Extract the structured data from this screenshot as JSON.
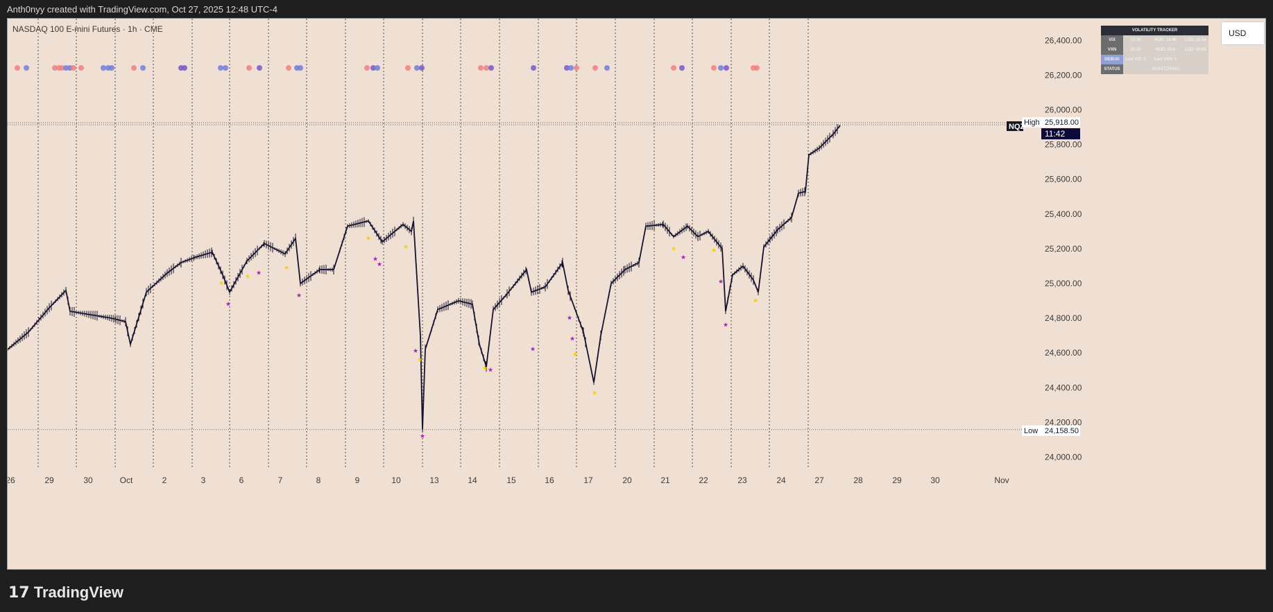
{
  "header": {
    "caption": "Anth0nyy created with TradingView.com, Oct 27, 2025 12:48 UTC-4"
  },
  "chart": {
    "symbol_label": "NASDAQ 100 E-mini Futures · 1h · CME",
    "currency": "USD",
    "ticker_tag": "NQZ",
    "high_label": "High",
    "high_value": "25,918.00",
    "countdown": "11:42",
    "low_label": "Low",
    "low_value": "24,158.50"
  },
  "volatility_tracker": {
    "title": "VOLATILITY TRACKER",
    "rows": [
      {
        "label": "VIX",
        "c1": "15.99",
        "c2": "HOD: 16.46",
        "c3": "LOD: 15.56"
      },
      {
        "label": "VXN",
        "c1": "20.31",
        "c2": "HOD: 20.8",
        "c3": "LOD: 19.65"
      },
      {
        "label": "DEBUG",
        "c1": "Last VIX: 0",
        "c2": "Last VXN: 0",
        "c3": ""
      },
      {
        "label": "STATUS",
        "status": "MONITORING"
      }
    ]
  },
  "footer": {
    "brand": "TradingView"
  },
  "colors": {
    "background": "#efe0d3",
    "candle": "#14122e",
    "dot_red": "#f08080",
    "dot_blue": "#6e7fdc",
    "dot_purple": "#7a57c8",
    "star_yellow": "#f5d000",
    "star_purple": "#a020b8"
  },
  "chart_data": {
    "type": "line",
    "title": "NASDAQ 100 E-mini Futures · 1h · CME",
    "x_tick_labels": [
      "26",
      "29",
      "30",
      "Oct",
      "2",
      "3",
      "6",
      "7",
      "8",
      "9",
      "10",
      "13",
      "14",
      "15",
      "16",
      "17",
      "20",
      "21",
      "22",
      "23",
      "24",
      "27",
      "28",
      "29",
      "30",
      "Nov"
    ],
    "y_tick_labels": [
      "26,400.00",
      "26,200.00",
      "26,000.00",
      "25,800.00",
      "25,600.00",
      "25,400.00",
      "25,200.00",
      "25,000.00",
      "24,800.00",
      "24,600.00",
      "24,400.00",
      "24,200.00",
      "24,000.00"
    ],
    "ylim": [
      23930,
      26525
    ],
    "series": [
      {
        "x": [
          "Sep 26",
          "Sep 29",
          "Sep 30",
          "Oct 1",
          "Oct 2",
          "Oct 3",
          "Oct 6",
          "Oct 7",
          "Oct 8",
          "Oct 9",
          "Oct 10",
          "Oct 13",
          "Oct 14",
          "Oct 15",
          "Oct 16",
          "Oct 17",
          "Oct 20",
          "Oct 21",
          "Oct 22",
          "Oct 23",
          "Oct 24",
          "Oct 27"
        ],
        "values": [
          24620,
          24870,
          24820,
          24800,
          25060,
          25180,
          25050,
          25130,
          25080,
          25360,
          25320,
          24830,
          24850,
          24900,
          25000,
          24650,
          25090,
          25330,
          25290,
          25050,
          25440,
          25900
        ]
      }
    ],
    "high": 25918.0,
    "low": 24158.5,
    "grid": false
  }
}
